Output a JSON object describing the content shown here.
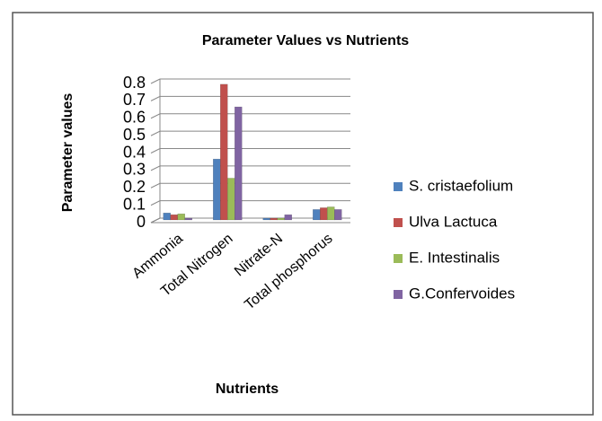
{
  "chart_data": {
    "type": "bar",
    "title": "Parameter Values vs Nutrients",
    "x_label": "Nutrients",
    "y_label": "Parameter values",
    "categories": [
      "Ammonia",
      "Total Nitrogen",
      "Nitrate-N",
      "Total phosphorus"
    ],
    "series": [
      {
        "name": "S. cristaefolium",
        "color": "#4f81bd",
        "values": [
          0.04,
          0.35,
          0.01,
          0.06
        ]
      },
      {
        "name": "Ulva Lactuca",
        "color": "#c0504d",
        "values": [
          0.03,
          0.78,
          0.01,
          0.07
        ]
      },
      {
        "name": "E. Intestinalis",
        "color": "#9bbb59",
        "values": [
          0.035,
          0.24,
          0.01,
          0.075
        ]
      },
      {
        "name": "G.Confervoides",
        "color": "#8064a2",
        "values": [
          0.01,
          0.65,
          0.03,
          0.06
        ]
      }
    ],
    "ylim": [
      0,
      0.8
    ],
    "yticks": [
      0,
      0.1,
      0.2,
      0.3,
      0.4,
      0.5,
      0.6,
      0.7,
      0.8
    ],
    "grid": true,
    "legend": "right"
  }
}
